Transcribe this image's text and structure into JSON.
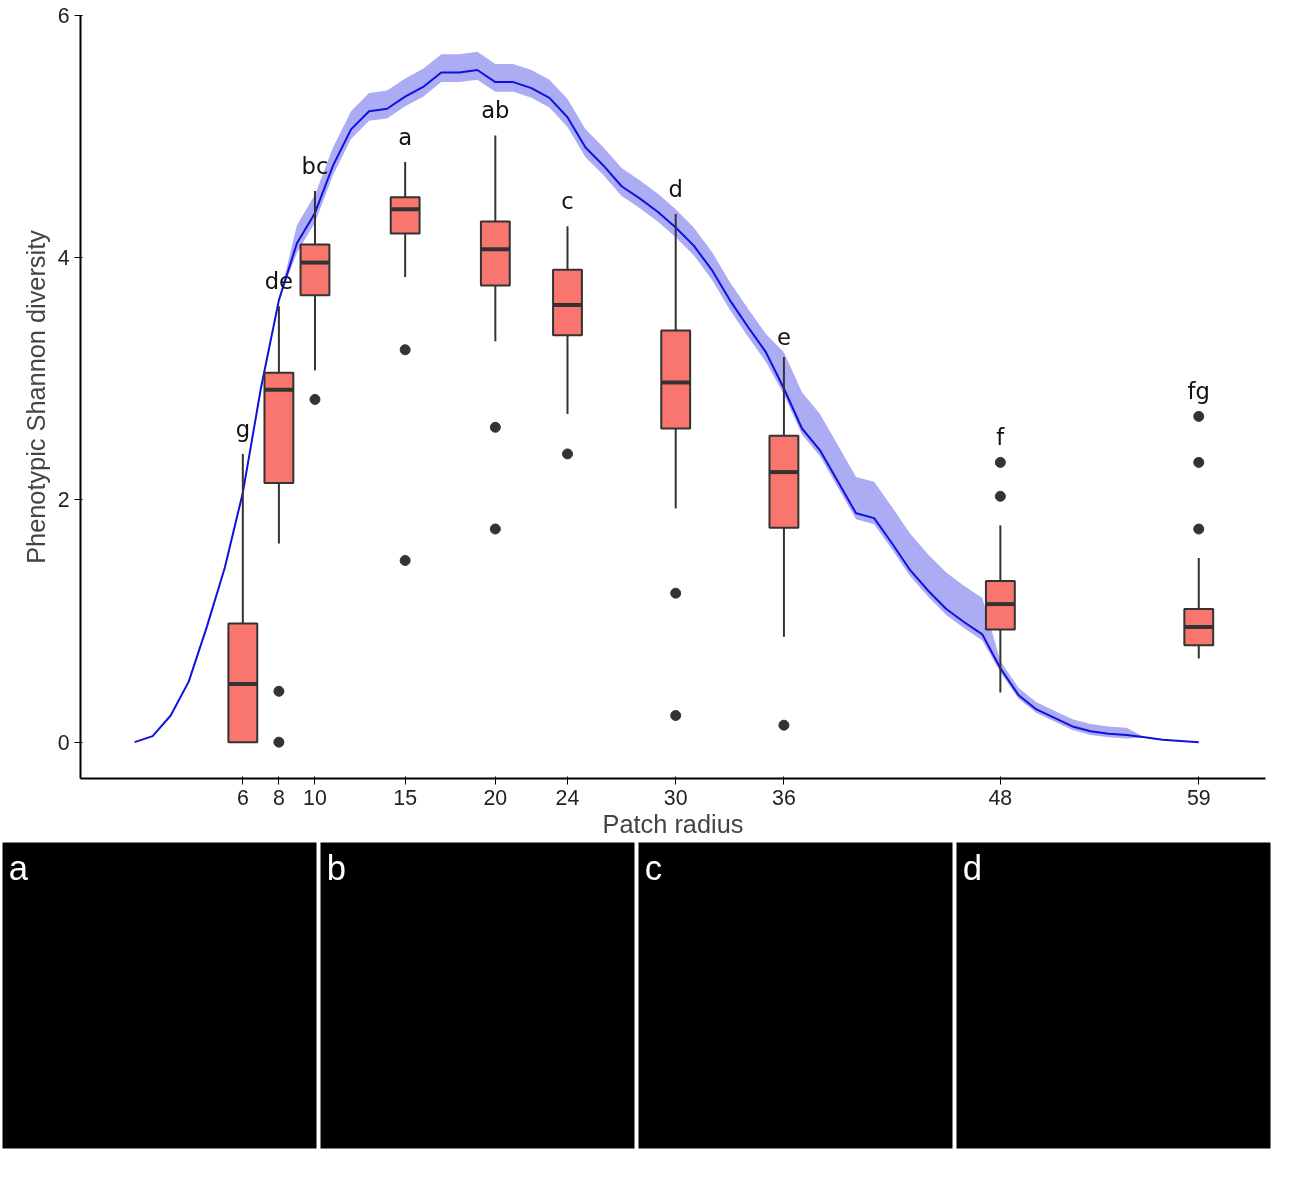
{
  "chart_data": {
    "type": "box",
    "xlabel": "Patch radius",
    "ylabel": "Phenotypic Shannon diversity",
    "xlim": [
      -3,
      62.7
    ],
    "xticks": [
      6,
      8,
      10,
      15,
      20,
      24,
      30,
      36,
      48,
      59
    ],
    "ylim": [
      -0.3,
      6
    ],
    "yticks": [
      0,
      2,
      4,
      6
    ],
    "grid": false,
    "annotations": [
      "g",
      "de",
      "bc",
      "a",
      "ab",
      "c",
      "d",
      "e",
      "f",
      "fg",
      "a",
      "b",
      "c",
      "d"
    ],
    "series": [
      {
        "type": "line",
        "color": "#1010e0",
        "x": [
          0,
          1,
          2,
          3,
          4,
          5,
          6,
          7,
          8,
          9,
          10,
          11,
          12,
          13,
          14,
          15,
          16,
          17,
          18,
          19,
          20,
          21,
          22,
          23,
          24,
          25,
          26,
          27,
          28,
          29,
          30,
          31,
          32,
          33,
          34,
          35,
          36,
          37,
          38,
          39,
          40,
          41,
          42,
          43,
          44,
          45,
          46,
          47,
          48,
          49,
          50,
          51,
          52,
          53,
          54,
          55,
          56,
          57,
          58,
          59
        ],
        "values": [
          0,
          0.05,
          0.22,
          0.5,
          0.95,
          1.44,
          2.06,
          2.92,
          3.65,
          4.12,
          4.37,
          4.76,
          5.06,
          5.21,
          5.23,
          5.33,
          5.41,
          5.53,
          5.53,
          5.55,
          5.45,
          5.45,
          5.4,
          5.32,
          5.16,
          4.91,
          4.76,
          4.59,
          4.49,
          4.38,
          4.25,
          4.1,
          3.9,
          3.65,
          3.43,
          3.22,
          2.92,
          2.59,
          2.41,
          2.15,
          1.89,
          1.85,
          1.64,
          1.42,
          1.25,
          1.1,
          0.99,
          0.89,
          0.61,
          0.39,
          0.27,
          0.2,
          0.13,
          0.09,
          0.07,
          0.06,
          0.04,
          0.02,
          0.01,
          0
        ],
        "lower": [
          0,
          0.05,
          0.22,
          0.5,
          0.95,
          1.44,
          2.06,
          2.92,
          3.65,
          4.04,
          4.29,
          4.68,
          4.98,
          5.13,
          5.15,
          5.25,
          5.33,
          5.45,
          5.45,
          5.47,
          5.37,
          5.37,
          5.32,
          5.24,
          5.08,
          4.83,
          4.68,
          4.51,
          4.41,
          4.3,
          4.17,
          4.02,
          3.82,
          3.57,
          3.35,
          3.14,
          2.87,
          2.54,
          2.36,
          2.1,
          1.84,
          1.8,
          1.59,
          1.37,
          1.2,
          1.05,
          0.94,
          0.84,
          0.58,
          0.36,
          0.24,
          0.17,
          0.1,
          0.06,
          0.04,
          0.03,
          0.04,
          0.02,
          0.01,
          0
        ],
        "upper": [
          0,
          0.05,
          0.22,
          0.5,
          0.95,
          1.44,
          2.06,
          2.92,
          3.65,
          4.27,
          4.52,
          4.91,
          5.21,
          5.36,
          5.38,
          5.48,
          5.56,
          5.68,
          5.68,
          5.7,
          5.6,
          5.6,
          5.55,
          5.47,
          5.31,
          5.06,
          4.91,
          4.74,
          4.64,
          4.53,
          4.4,
          4.25,
          4.05,
          3.8,
          3.58,
          3.37,
          3.22,
          2.89,
          2.71,
          2.45,
          2.19,
          2.15,
          1.94,
          1.72,
          1.55,
          1.4,
          1.29,
          1.19,
          0.67,
          0.45,
          0.33,
          0.26,
          0.19,
          0.15,
          0.13,
          0.12,
          0.04,
          0.02,
          0.01,
          0
        ]
      },
      {
        "color": "#f8766d",
        "x": [
          6,
          8,
          10,
          15,
          20,
          24,
          30,
          36,
          48,
          59
        ],
        "boxes": [
          {
            "low": 0,
            "q1": 0,
            "median": 0.48,
            "q3": 0.98,
            "high": 2.38
          },
          {
            "low": 1.64,
            "q1": 2.14,
            "median": 2.91,
            "q3": 3.05,
            "high": 3.6,
            "outliers": [
              0.42,
              0
            ]
          },
          {
            "low": 3.07,
            "q1": 3.69,
            "median": 3.96,
            "q3": 4.11,
            "high": 4.55,
            "outliers": [
              2.83
            ]
          },
          {
            "low": 3.84,
            "q1": 4.2,
            "median": 4.4,
            "q3": 4.5,
            "high": 4.79,
            "outliers": [
              3.24,
              1.5
            ]
          },
          {
            "low": 3.31,
            "q1": 3.77,
            "median": 4.07,
            "q3": 4.3,
            "high": 5.01,
            "outliers": [
              2.6,
              1.76
            ]
          },
          {
            "low": 2.71,
            "q1": 3.36,
            "median": 3.61,
            "q3": 3.9,
            "high": 4.26,
            "outliers": [
              2.38
            ]
          },
          {
            "low": 1.93,
            "q1": 2.59,
            "median": 2.97,
            "q3": 3.4,
            "high": 4.36,
            "outliers": [
              1.23,
              0.22
            ]
          },
          {
            "low": 0.87,
            "q1": 1.77,
            "median": 2.23,
            "q3": 2.53,
            "high": 3.18,
            "outliers": [
              0.14
            ]
          },
          {
            "low": 0.41,
            "q1": 0.93,
            "median": 1.14,
            "q3": 1.33,
            "high": 1.79,
            "outliers": [
              2.03,
              2.31
            ]
          },
          {
            "low": 0.69,
            "q1": 0.8,
            "median": 0.95,
            "q3": 1.1,
            "high": 1.52,
            "outliers": [
              1.76,
              2.31,
              2.69
            ]
          }
        ]
      }
    ]
  }
}
